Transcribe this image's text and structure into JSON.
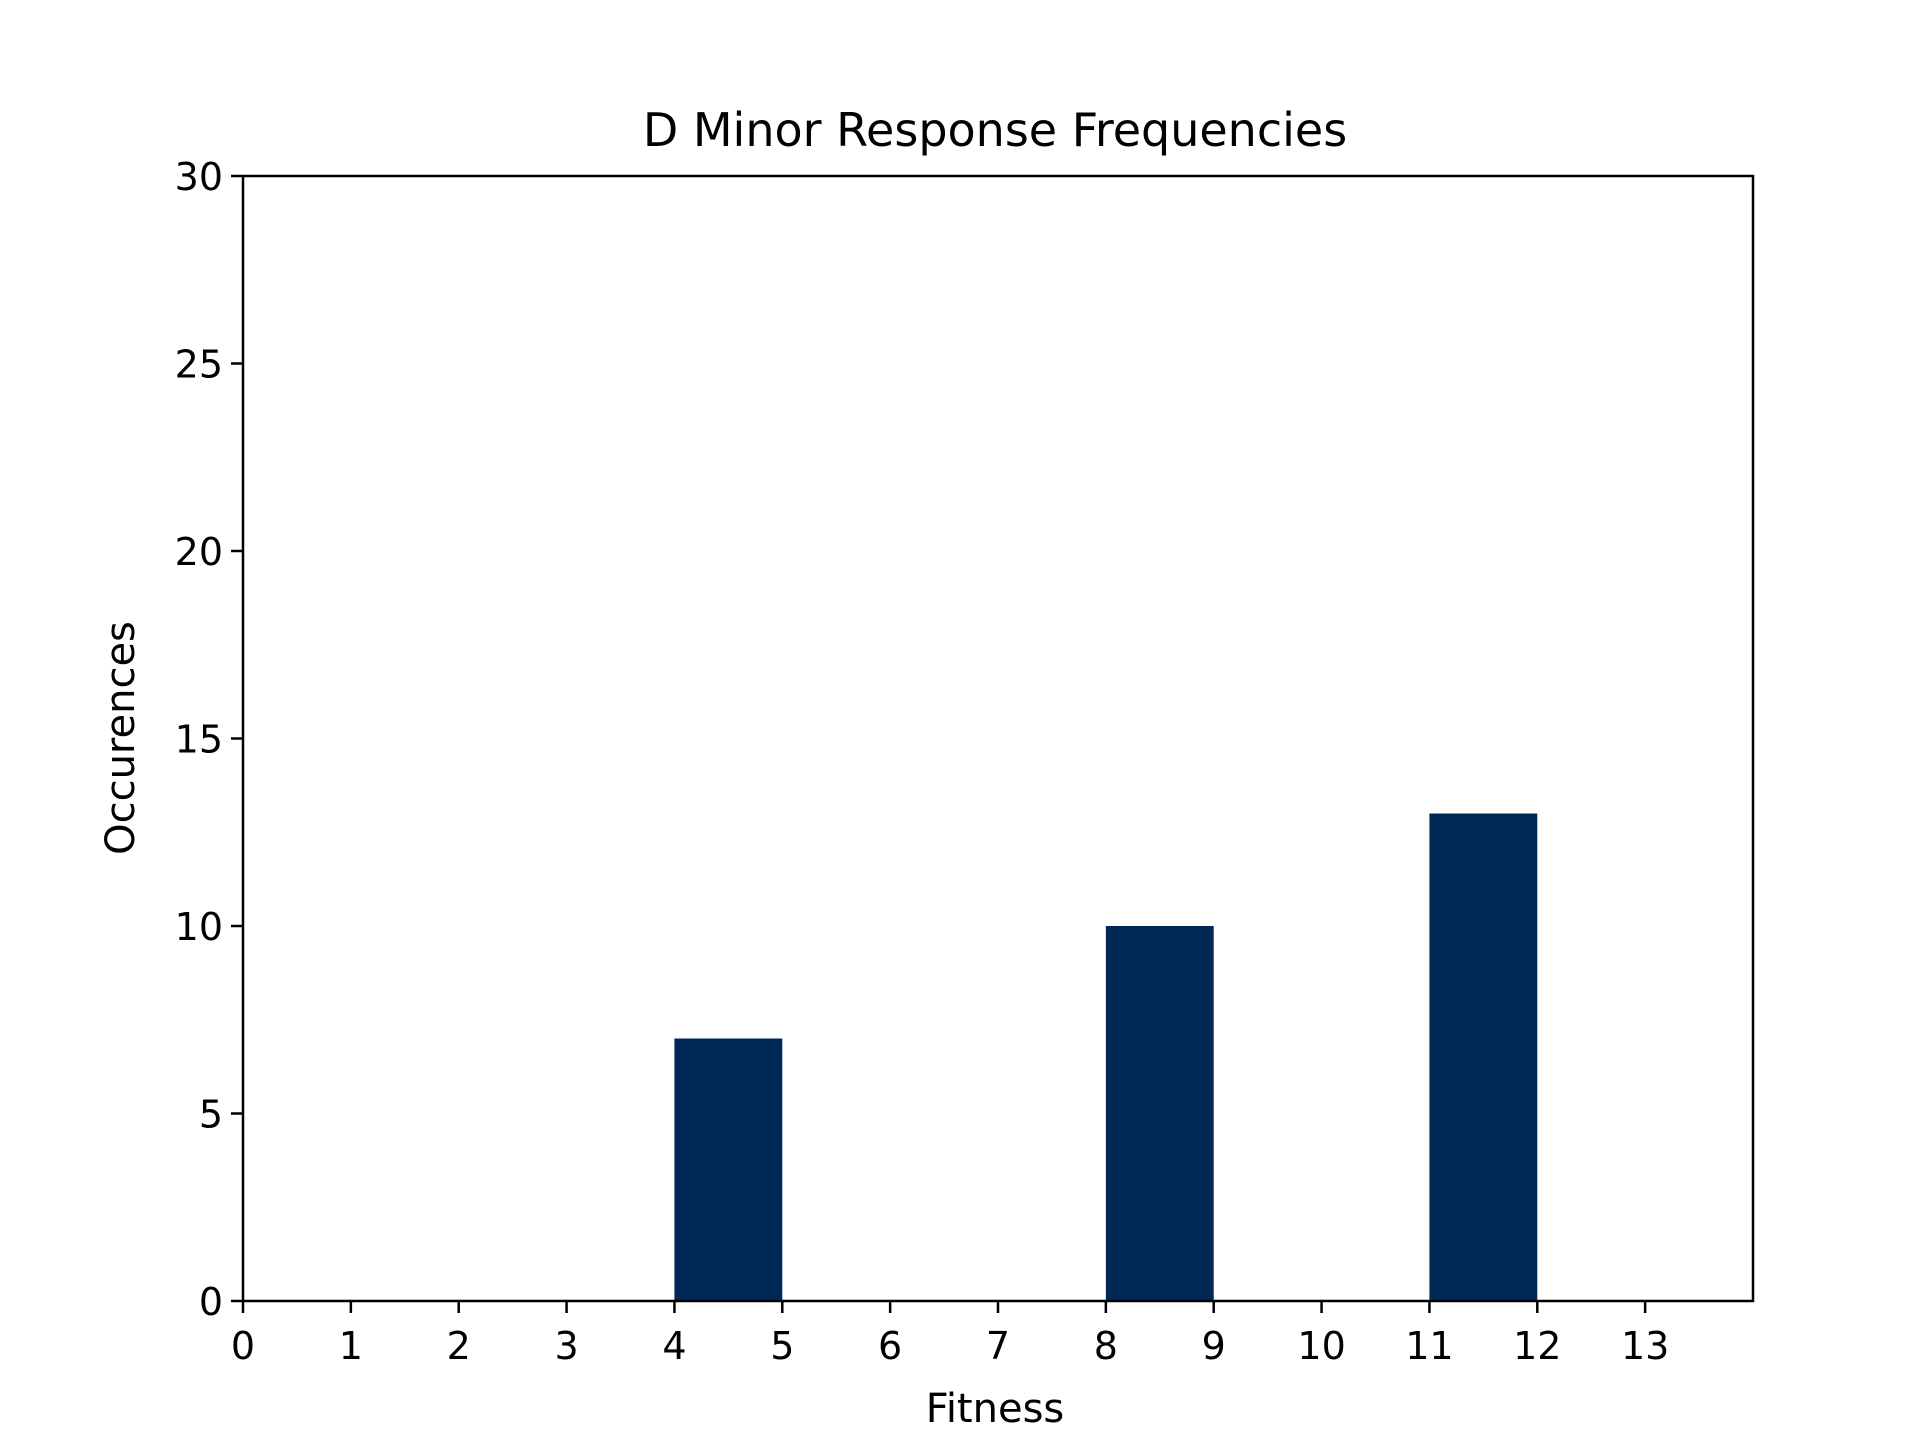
{
  "chart_data": {
    "type": "bar",
    "title": "D Minor Response Frequencies",
    "xlabel": "Fitness",
    "ylabel": "Occurences",
    "xlim": [
      0,
      14
    ],
    "ylim": [
      0,
      30
    ],
    "x_ticks": [
      0,
      1,
      2,
      3,
      4,
      5,
      6,
      7,
      8,
      9,
      10,
      11,
      12,
      13
    ],
    "y_ticks": [
      0,
      5,
      10,
      15,
      20,
      25,
      30
    ],
    "bins": [
      {
        "x_start": 4,
        "x_end": 5,
        "value": 7
      },
      {
        "x_start": 8,
        "x_end": 9,
        "value": 10
      },
      {
        "x_start": 11,
        "x_end": 12,
        "value": 13
      }
    ],
    "bar_color": "#002855",
    "grid": false,
    "legend": "none"
  }
}
